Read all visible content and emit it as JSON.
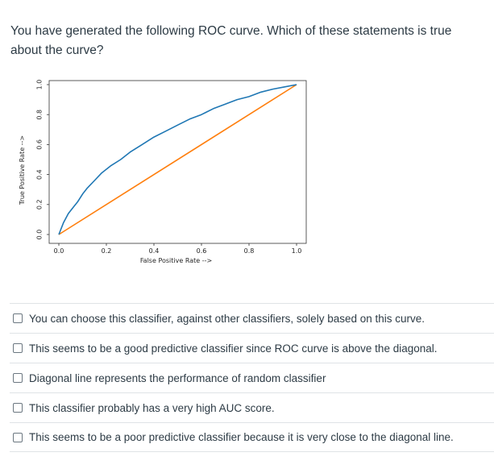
{
  "question": {
    "text": "You have generated the following ROC curve.  Which of these statements is true about the curve?"
  },
  "chart_data": {
    "type": "line",
    "xlabel": "False Positive Rate -->",
    "ylabel": "True Positive Rate -->",
    "xlim": [
      0.0,
      1.0
    ],
    "ylim": [
      0.0,
      1.0
    ],
    "xticks": [
      "0.0",
      "0.2",
      "0.4",
      "0.6",
      "0.8",
      "1.0"
    ],
    "yticks": [
      "0.0",
      "0.2",
      "0.4",
      "0.6",
      "0.8",
      "1.0"
    ],
    "grid": false,
    "series": [
      {
        "color": "#1f77b4",
        "x": [
          0.0,
          0.02,
          0.04,
          0.06,
          0.08,
          0.1,
          0.12,
          0.15,
          0.18,
          0.22,
          0.26,
          0.3,
          0.35,
          0.4,
          0.45,
          0.5,
          0.55,
          0.6,
          0.65,
          0.7,
          0.75,
          0.8,
          0.85,
          0.9,
          0.95,
          1.0
        ],
        "y": [
          0.0,
          0.08,
          0.14,
          0.18,
          0.22,
          0.27,
          0.31,
          0.36,
          0.41,
          0.46,
          0.5,
          0.55,
          0.6,
          0.65,
          0.69,
          0.73,
          0.77,
          0.8,
          0.84,
          0.87,
          0.9,
          0.92,
          0.95,
          0.97,
          0.985,
          1.0
        ]
      },
      {
        "color": "#ff7f0e",
        "x": [
          0.0,
          1.0
        ],
        "y": [
          0.0,
          1.0
        ]
      }
    ]
  },
  "answers": [
    "You can choose this classifier, against other classifiers, solely based on this curve.",
    "This seems to be a good predictive classifier since ROC curve is above the diagonal.",
    "Diagonal line represents the performance of random classifier",
    "This classifier probably has a very high AUC score.",
    "This seems to be a poor predictive classifier because it is very close to the diagonal line."
  ]
}
